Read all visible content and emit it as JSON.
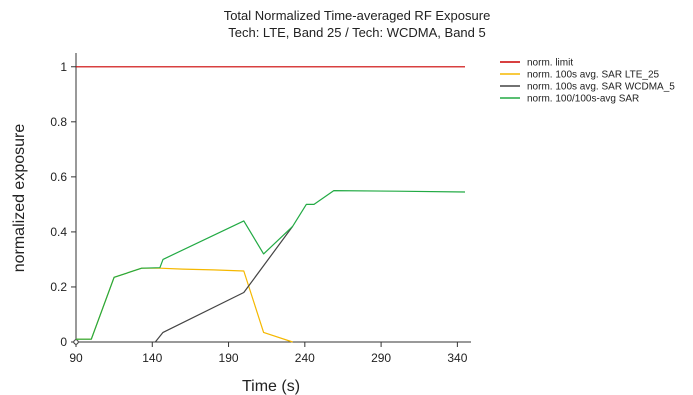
{
  "chart_data": {
    "type": "line",
    "title": "Total Normalized Time-averaged RF Exposure",
    "subtitle": "Tech: LTE, Band 25 / Tech: WCDMA, Band 5",
    "xlabel": "Time (s)",
    "ylabel": "normalized exposure",
    "xlim": [
      90,
      345
    ],
    "ylim": [
      0,
      1.05
    ],
    "xticks": [
      90,
      140,
      190,
      240,
      290,
      340
    ],
    "yticks": [
      0,
      0.2,
      0.4,
      0.6,
      0.8,
      1
    ],
    "ytick_labels": [
      "0",
      "0.2",
      "0.4",
      "0.6",
      "0.8",
      "1"
    ],
    "grid": false,
    "legend_position": "top-right",
    "series": [
      {
        "name": "norm. limit",
        "color": "#cc0000",
        "x": [
          90,
          345
        ],
        "y": [
          1.0,
          1.0
        ]
      },
      {
        "name": "norm. 100s avg. SAR LTE_25",
        "color": "#f5b800",
        "x": [
          90,
          100,
          115,
          133,
          145,
          160,
          180,
          200,
          213,
          232
        ],
        "y": [
          0.01,
          0.01,
          0.235,
          0.268,
          0.268,
          0.265,
          0.262,
          0.258,
          0.035,
          0.0
        ]
      },
      {
        "name": "norm. 100s avg. SAR WCDMA_5",
        "color": "#444444",
        "x": [
          142,
          147,
          200,
          232
        ],
        "y": [
          0.0,
          0.035,
          0.18,
          0.42
        ]
      },
      {
        "name": "norm. 100/100s-avg SAR",
        "color": "#22aa44",
        "x": [
          90,
          100,
          115,
          133,
          145,
          147,
          200,
          213,
          232,
          241,
          246,
          259,
          300,
          345
        ],
        "y": [
          0.01,
          0.01,
          0.235,
          0.268,
          0.27,
          0.3,
          0.44,
          0.32,
          0.42,
          0.5,
          0.5,
          0.55,
          0.548,
          0.545
        ]
      }
    ]
  }
}
